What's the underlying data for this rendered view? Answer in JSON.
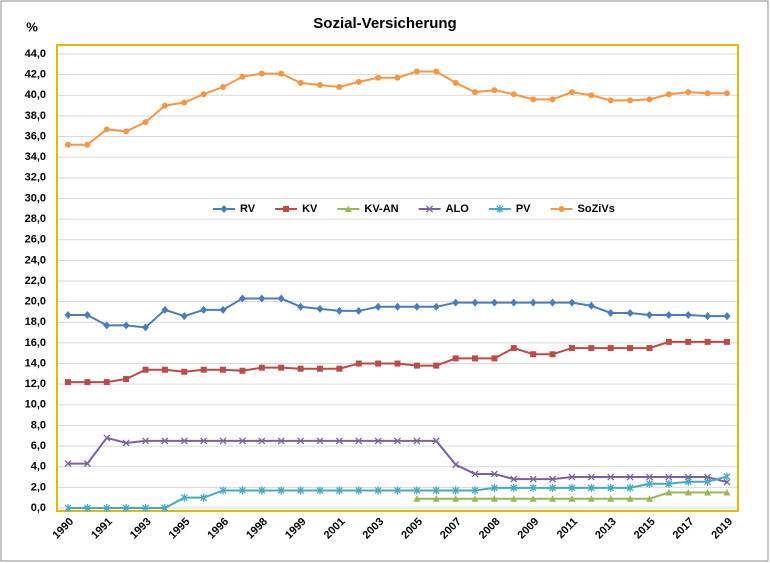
{
  "chart_data": {
    "type": "line",
    "title": "Sozial-Versicherung",
    "y_label": "%",
    "categories": [
      "1990",
      null,
      "1991",
      null,
      "1993",
      null,
      "1995",
      null,
      "1996",
      null,
      "1998",
      null,
      "1999",
      null,
      "2001",
      null,
      "2003",
      null,
      "2005",
      null,
      "2007",
      null,
      "2008",
      null,
      "2009",
      null,
      "2011",
      null,
      "2013",
      null,
      "2015",
      null,
      "2017",
      null,
      "2019"
    ],
    "ylim": [
      0,
      44
    ],
    "yticks": [
      {
        "value": 0,
        "label": "0,0"
      },
      {
        "value": 2,
        "label": "2,0"
      },
      {
        "value": 4,
        "label": "4,0"
      },
      {
        "value": 6,
        "label": "6,0"
      },
      {
        "value": 8,
        "label": "8,0"
      },
      {
        "value": 10,
        "label": "10,0"
      },
      {
        "value": 12,
        "label": "12,0"
      },
      {
        "value": 14,
        "label": "14,0"
      },
      {
        "value": 16,
        "label": "16,0"
      },
      {
        "value": 18,
        "label": "18,0"
      },
      {
        "value": 20,
        "label": "20,0"
      },
      {
        "value": 22,
        "label": "22,0"
      },
      {
        "value": 24,
        "label": "24,0"
      },
      {
        "value": 26,
        "label": "26,0"
      },
      {
        "value": 28,
        "label": "28,0"
      },
      {
        "value": 30,
        "label": "30,0"
      },
      {
        "value": 32,
        "label": "32,0"
      },
      {
        "value": 34,
        "label": "34,0"
      },
      {
        "value": 36,
        "label": "36,0"
      },
      {
        "value": 38,
        "label": "38,0"
      },
      {
        "value": 40,
        "label": "40,0"
      },
      {
        "value": 42,
        "label": "42,0"
      },
      {
        "value": 44,
        "label": "44,0"
      }
    ],
    "grid": true,
    "legend": "center",
    "series": [
      {
        "name": "RV",
        "color": "#4a7ebb",
        "marker": "diamond",
        "values": [
          18.7,
          18.7,
          17.7,
          17.7,
          17.5,
          19.2,
          18.6,
          19.2,
          19.2,
          20.3,
          20.3,
          20.3,
          19.5,
          19.3,
          19.1,
          19.1,
          19.5,
          19.5,
          19.5,
          19.5,
          19.9,
          19.9,
          19.9,
          19.9,
          19.9,
          19.9,
          19.9,
          19.6,
          18.9,
          18.9,
          18.7,
          18.7,
          18.7,
          18.6,
          18.6
        ]
      },
      {
        "name": "KV",
        "color": "#be4b48",
        "marker": "square",
        "values": [
          12.2,
          12.2,
          12.2,
          12.5,
          13.4,
          13.4,
          13.2,
          13.4,
          13.4,
          13.3,
          13.6,
          13.6,
          13.5,
          13.5,
          13.5,
          14.0,
          14.0,
          14.0,
          13.8,
          13.8,
          14.5,
          14.5,
          14.5,
          15.5,
          14.9,
          14.9,
          15.5,
          15.5,
          15.5,
          15.5,
          15.5,
          16.1,
          16.1,
          16.1,
          16.1
        ]
      },
      {
        "name": "KV-AN",
        "color": "#98b954",
        "marker": "triangle",
        "values": [
          null,
          null,
          null,
          null,
          null,
          null,
          null,
          null,
          null,
          null,
          null,
          null,
          null,
          null,
          null,
          null,
          null,
          null,
          0.9,
          0.9,
          0.9,
          0.9,
          0.9,
          0.9,
          0.9,
          0.9,
          0.9,
          0.9,
          0.9,
          0.9,
          0.9,
          1.5,
          1.5,
          1.5,
          1.5
        ]
      },
      {
        "name": "ALO",
        "color": "#7d60a0",
        "marker": "x",
        "values": [
          4.3,
          4.3,
          6.8,
          6.3,
          6.5,
          6.5,
          6.5,
          6.5,
          6.5,
          6.5,
          6.5,
          6.5,
          6.5,
          6.5,
          6.5,
          6.5,
          6.5,
          6.5,
          6.5,
          6.5,
          4.2,
          3.3,
          3.3,
          2.8,
          2.8,
          2.8,
          3.0,
          3.0,
          3.0,
          3.0,
          3.0,
          3.0,
          3.0,
          3.0,
          2.5
        ]
      },
      {
        "name": "PV",
        "color": "#46aac5",
        "marker": "star",
        "values": [
          0,
          0,
          0,
          0,
          0,
          0,
          1.0,
          1.0,
          1.7,
          1.7,
          1.7,
          1.7,
          1.7,
          1.7,
          1.7,
          1.7,
          1.7,
          1.7,
          1.7,
          1.7,
          1.7,
          1.7,
          1.95,
          1.95,
          1.95,
          1.95,
          1.95,
          1.95,
          1.95,
          1.95,
          2.35,
          2.35,
          2.55,
          2.55,
          3.05
        ]
      },
      {
        "name": "SoZiVs",
        "color": "#f79646",
        "marker": "circle",
        "values": [
          35.2,
          35.2,
          36.7,
          36.5,
          37.4,
          39.0,
          39.3,
          40.1,
          40.8,
          41.8,
          42.1,
          42.1,
          41.2,
          41.0,
          40.8,
          41.3,
          41.7,
          41.7,
          42.3,
          42.3,
          41.2,
          40.3,
          40.5,
          40.1,
          39.6,
          39.6,
          40.3,
          40.0,
          39.5,
          39.5,
          39.6,
          40.1,
          40.3,
          40.2,
          40.2
        ]
      }
    ]
  }
}
